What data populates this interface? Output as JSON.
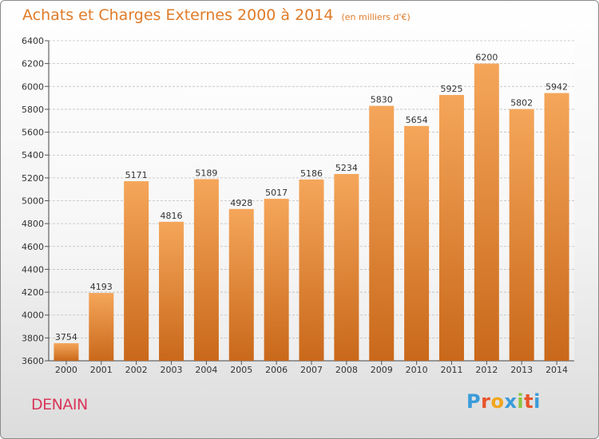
{
  "title": {
    "main": "Achats et Charges Externes 2000 à 2014",
    "subtitle": "(en milliers d'€)"
  },
  "footer": {
    "city": "DENAIN",
    "logo_text": "Proxiti",
    "logo_letters": [
      "P",
      "r",
      "o",
      "x",
      "i",
      "t",
      "i"
    ]
  },
  "colors": {
    "title": "#e07b28",
    "city": "#d9365a",
    "bar_top": "#f5a65a",
    "bar_bottom": "#c9681a",
    "grid": "#bdbdbd"
  },
  "chart_data": {
    "type": "bar",
    "title": "Achats et Charges Externes 2000 à 2014",
    "subtitle": "(en milliers d'€)",
    "categories": [
      "2000",
      "2001",
      "2002",
      "2003",
      "2004",
      "2005",
      "2006",
      "2007",
      "2008",
      "2009",
      "2010",
      "2011",
      "2012",
      "2013",
      "2014"
    ],
    "values": [
      3754,
      4193,
      5171,
      4816,
      5189,
      4928,
      5017,
      5186,
      5234,
      5830,
      5654,
      5925,
      6200,
      5802,
      5942
    ],
    "ylim": [
      3600,
      6400
    ],
    "yticks": [
      3600,
      3800,
      4000,
      4200,
      4400,
      4600,
      4800,
      5000,
      5200,
      5400,
      5600,
      5800,
      6000,
      6200,
      6400
    ],
    "grid": true,
    "data_labels": true
  }
}
